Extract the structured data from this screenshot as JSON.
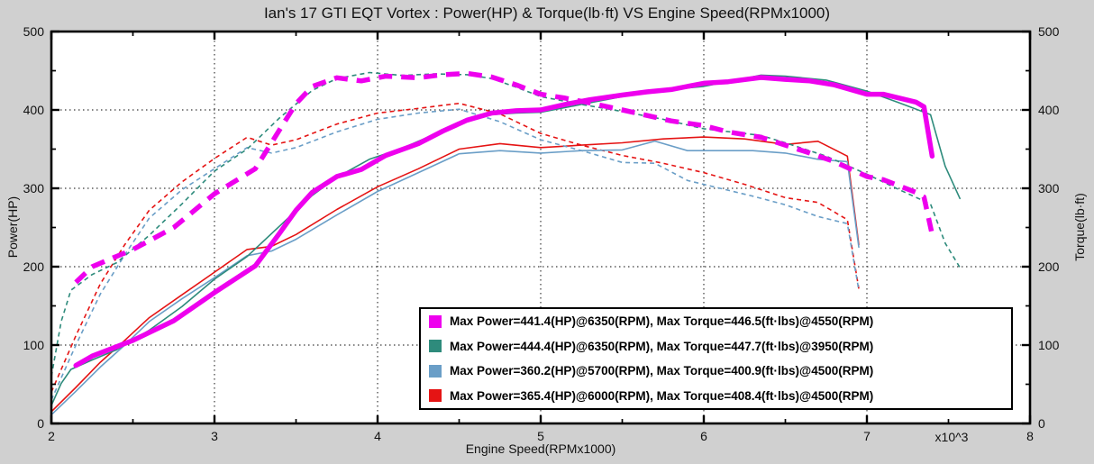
{
  "window": {
    "background": "#d0d0d0",
    "plot_background": "#ffffff",
    "frame_color": "#000000"
  },
  "chart_data": {
    "type": "line",
    "title": "Ian's 17 GTI EQT Vortex : Power(HP) & Torque(lb·ft) VS Engine Speed(RPMx1000)",
    "xlabel": "Engine Speed(RPMx1000)",
    "x_exponent_label": "x10^3",
    "ylabel_left": "Power(HP)",
    "ylabel_right": "Torque(lb·ft)",
    "xlim": [
      2000,
      8000
    ],
    "ylim": [
      0,
      500
    ],
    "x_ticks": [
      2,
      3,
      4,
      5,
      6,
      7,
      8
    ],
    "x_minor_step_rpm": 500,
    "y_ticks": [
      0,
      100,
      200,
      300,
      400,
      500
    ],
    "y_minor_step": 50,
    "grid": {
      "style": "dotted",
      "color": "#3a3a3a",
      "x_lines_rpm": [
        3000,
        4000,
        5000,
        6000,
        7000
      ],
      "y_lines": [
        100,
        200,
        300,
        400
      ]
    },
    "legend": {
      "position": "lower-right",
      "entries": [
        {
          "color": "#ee00ee",
          "label": "Max Power=441.4(HP)@6350(RPM), Max Torque=446.5(ft·lbs)@4550(RPM)"
        },
        {
          "color": "#2e8b7c",
          "label": "Max Power=444.4(HP)@6350(RPM), Max Torque=447.7(ft·lbs)@3950(RPM)"
        },
        {
          "color": "#6a9ec7",
          "label": "Max Power=360.2(HP)@5700(RPM), Max Torque=400.9(ft·lbs)@4500(RPM)"
        },
        {
          "color": "#e51414",
          "label": "Max Power=365.4(HP)@6000(RPM), Max Torque=408.4(ft·lbs)@4500(RPM)"
        }
      ]
    },
    "line_styles": {
      "power": "solid",
      "torque": "dashed"
    },
    "runs": [
      {
        "id": "vortex-magenta",
        "color": "#ee00ee",
        "line_width": 5.5,
        "dash": [
          15,
          10
        ],
        "max_power_hp": 441.4,
        "max_power_rpm": 6350,
        "max_torque_lbft": 446.5,
        "max_torque_rpm": 4550,
        "rpm": [
          2150,
          2250,
          2500,
          2750,
          3000,
          3250,
          3400,
          3500,
          3600,
          3750,
          3900,
          4050,
          4250,
          4400,
          4550,
          4700,
          4850,
          5000,
          5150,
          5300,
          5500,
          5650,
          5800,
          6000,
          6150,
          6350,
          6500,
          6650,
          6800,
          7000,
          7100,
          7200,
          7300,
          7350,
          7400
        ],
        "power_hp": [
          74,
          86,
          106,
          131,
          167,
          201,
          243,
          272,
          295,
          315,
          324,
          342,
          357,
          373,
          387,
          396,
          399,
          400,
          407,
          413,
          419,
          423,
          426,
          434,
          436,
          441.4,
          439,
          437,
          432,
          420,
          420,
          415,
          410,
          404,
          341
        ],
        "torque_lbft": [
          180,
          200,
          222,
          250,
          293,
          325,
          375,
          408,
          430,
          441,
          437,
          443,
          441,
          445,
          446.5,
          442,
          432,
          420,
          415,
          409,
          400,
          393,
          386,
          380,
          372,
          365,
          355,
          345,
          334,
          315,
          311,
          303,
          295,
          289,
          241
        ]
      },
      {
        "id": "vortex-teal",
        "color": "#2e8b7c",
        "line_width": 1.6,
        "dash": [
          5,
          4
        ],
        "max_power_hp": 444.4,
        "max_power_rpm": 6350,
        "max_torque_lbft": 447.7,
        "max_torque_rpm": 3950,
        "rpm": [
          2000,
          2060,
          2120,
          2250,
          2400,
          2600,
          2800,
          3000,
          3200,
          3400,
          3600,
          3750,
          3950,
          4150,
          4350,
          4550,
          4700,
          4850,
          5000,
          5250,
          5500,
          5750,
          6000,
          6200,
          6350,
          6500,
          6750,
          7000,
          7200,
          7390,
          7480,
          7570
        ],
        "power_hp": [
          23,
          51,
          69,
          81,
          94,
          119,
          149,
          184,
          213,
          252,
          291,
          314,
          337,
          351,
          369,
          386,
          394,
          396,
          397,
          407,
          417,
          425,
          430,
          438,
          444.4,
          443,
          438,
          424,
          409,
          394,
          328,
          287
        ],
        "torque_lbft": [
          60,
          130,
          170,
          190,
          205,
          240,
          280,
          322,
          350,
          390,
          425,
          440,
          447.7,
          444,
          446,
          445,
          440,
          429,
          417,
          407,
          398,
          388,
          376,
          371,
          367.5,
          358,
          341,
          318,
          298,
          280,
          230,
          199
        ]
      },
      {
        "id": "run-steelblue",
        "color": "#6a9ec7",
        "line_width": 1.6,
        "dash": [
          5,
          4
        ],
        "max_power_hp": 360.2,
        "max_power_rpm": 5700,
        "max_torque_lbft": 400.9,
        "max_torque_rpm": 4500,
        "rpm": [
          2000,
          2150,
          2300,
          2450,
          2600,
          2800,
          3000,
          3200,
          3350,
          3500,
          3750,
          4000,
          4250,
          4500,
          4750,
          5000,
          5250,
          5500,
          5700,
          5900,
          6100,
          6300,
          6500,
          6700,
          6880,
          6950
        ],
        "power_hp": [
          11,
          41,
          72,
          100,
          130,
          159,
          186,
          214,
          220,
          235,
          266,
          296,
          320,
          344,
          348,
          345,
          348,
          349,
          360.2,
          348,
          348,
          348,
          345,
          337,
          334,
          225
        ],
        "torque_lbft": [
          30,
          100,
          165,
          215,
          262,
          298,
          325,
          352,
          345,
          352,
          372,
          388,
          396,
          400.9,
          385,
          362,
          348,
          333,
          332,
          310,
          300,
          290,
          279,
          264,
          255,
          170
        ]
      },
      {
        "id": "run-red",
        "color": "#e51414",
        "line_width": 1.6,
        "dash": [
          5,
          4
        ],
        "max_power_hp": 365.4,
        "max_power_rpm": 6000,
        "max_torque_lbft": 408.4,
        "max_torque_rpm": 4500,
        "rpm": [
          2000,
          2150,
          2300,
          2450,
          2600,
          2800,
          3000,
          3200,
          3350,
          3500,
          3750,
          4000,
          4250,
          4500,
          4750,
          5000,
          5250,
          5500,
          5750,
          6000,
          6250,
          6500,
          6700,
          6880,
          6950
        ],
        "power_hp": [
          15,
          46,
          78,
          106,
          135,
          164,
          193,
          222,
          226,
          241,
          273,
          302,
          325,
          350,
          357,
          352,
          355,
          358,
          363,
          365.4,
          363,
          356,
          360,
          341,
          228
        ],
        "torque_lbft": [
          40,
          112,
          178,
          228,
          272,
          308,
          338,
          365,
          355,
          362,
          382,
          396,
          402,
          408.4,
          395,
          370,
          355,
          342,
          332,
          320,
          305,
          288,
          282,
          260,
          172
        ]
      }
    ]
  }
}
